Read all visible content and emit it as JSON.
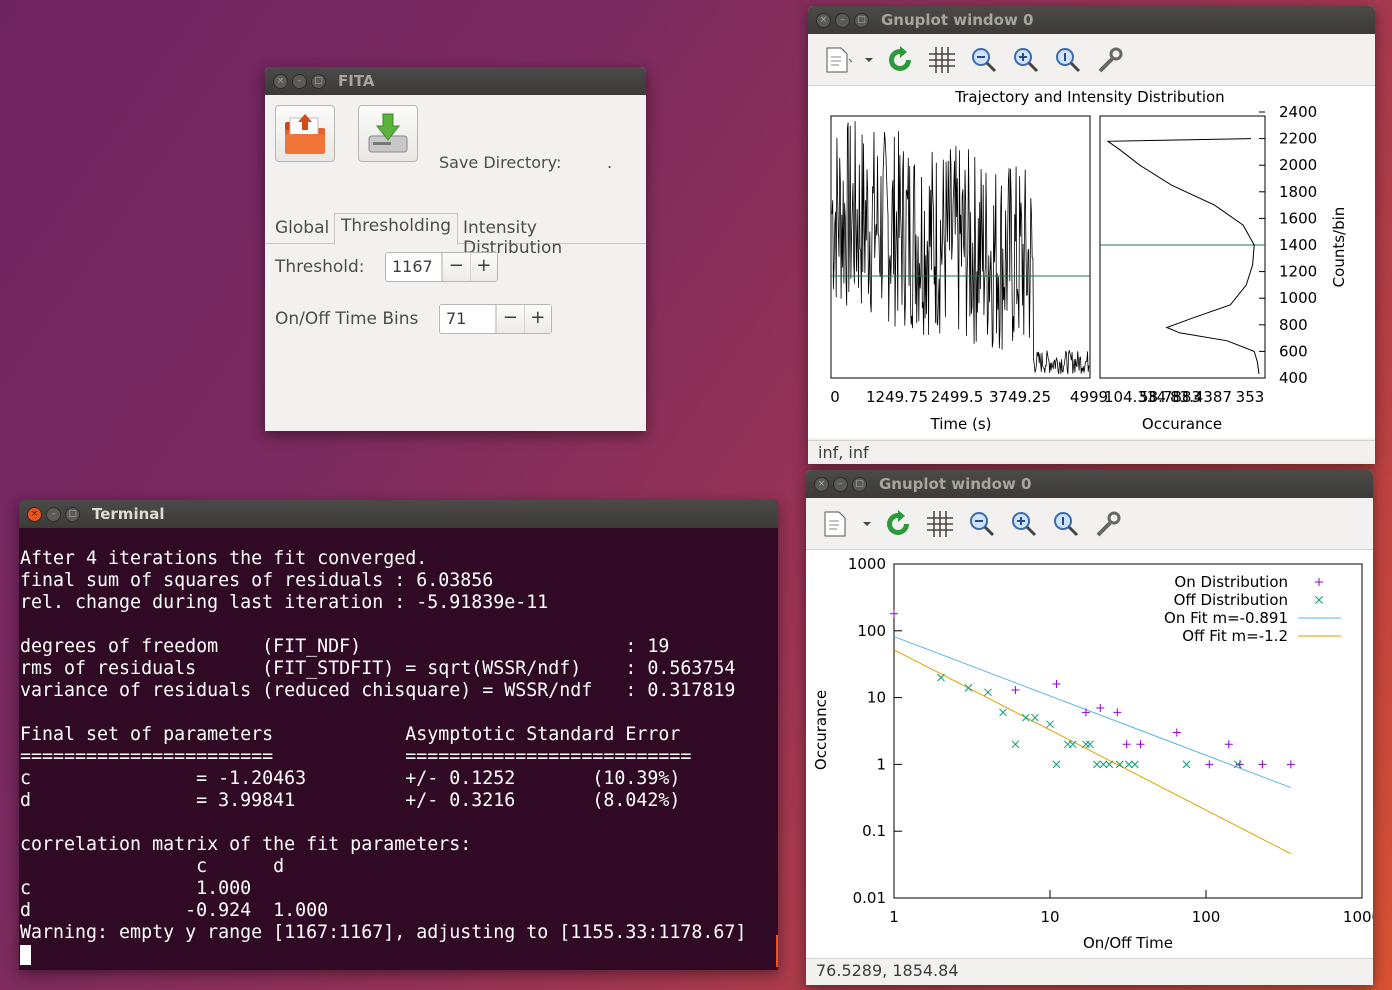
{
  "fita": {
    "title": "FITA",
    "save_directory_label": "Save Directory:",
    "save_directory_value": ".",
    "tabs": [
      "Global",
      "Thresholding",
      "Intensity Distribution"
    ],
    "active_tab": "Thresholding",
    "threshold_label": "Threshold:",
    "threshold_value": "1167",
    "onoff_label": "On/Off Time Bins",
    "onoff_value": "71",
    "minus": "−",
    "plus": "+"
  },
  "terminal": {
    "title": "Terminal",
    "lines": [
      "After 4 iterations the fit converged.",
      "final sum of squares of residuals : 6.03856",
      "rel. change during last iteration : -5.91839e-11",
      "",
      "degrees of freedom    (FIT_NDF)                        : 19",
      "rms of residuals      (FIT_STDFIT) = sqrt(WSSR/ndf)    : 0.563754",
      "variance of residuals (reduced chisquare) = WSSR/ndf   : 0.317819",
      "",
      "Final set of parameters            Asymptotic Standard Error",
      "=======================            ==========================",
      "c               = -1.20463         +/- 0.1252       (10.39%)",
      "d               = 3.99841          +/- 0.3216       (8.042%)",
      "",
      "correlation matrix of the fit parameters:",
      "                c      d",
      "c               1.000",
      "d              -0.924  1.000",
      "Warning: empty y range [1167:1167], adjusting to [1155.33:1178.67]"
    ]
  },
  "gnuplot1": {
    "title": "Gnuplot window 0",
    "status": "inf,  inf",
    "plot_title": "Trajectory and Intensity Distribution",
    "left_xlabel": "Time (s)",
    "right_xlabel": "Occurance",
    "right_ylabel": "Counts/bin",
    "left_xticks": [
      "0",
      "1249.75",
      "2499.5",
      "3749.25",
      "4999"
    ],
    "right_xticks": [
      "104.334",
      "58.7883",
      "83.4387",
      "353"
    ],
    "yticks": [
      "2400",
      "2200",
      "2000",
      "1800",
      "1600",
      "1400",
      "1200",
      "1000",
      "800",
      "600",
      "400"
    ],
    "threshold_color": "#1a7a4a"
  },
  "gnuplot2": {
    "title": "Gnuplot window 0",
    "status": "76.5289,  1854.84",
    "xlabel": "On/Off Time",
    "ylabel": "Occurance",
    "xticks": [
      "1",
      "10",
      "100",
      "1000"
    ],
    "yticks": [
      "1000",
      "100",
      "10",
      "1",
      "0.1",
      "0.01"
    ],
    "legend": [
      "On Distribution",
      "Off Distribution",
      "On Fit m=-0.891",
      "Off Fit m=-1.2"
    ],
    "colors": {
      "on": "#9400d3",
      "off": "#009e73",
      "on_fit": "#56b4e9",
      "off_fit": "#e69f00"
    }
  },
  "chart_data": {
    "type": "scatter",
    "xlabel": "On/Off Time",
    "ylabel": "Occurance",
    "xscale": "log",
    "yscale": "log",
    "xlim": [
      1,
      1000
    ],
    "ylim": [
      0.01,
      1000
    ],
    "legend_position": "top-right",
    "series": [
      {
        "name": "On Distribution",
        "x": [
          1,
          6,
          11,
          17,
          21,
          27,
          31,
          38,
          65,
          105,
          140,
          165,
          230,
          350
        ],
        "y": [
          180,
          13,
          16,
          6,
          7,
          6,
          2,
          2,
          3,
          1,
          2,
          1,
          1,
          1
        ]
      },
      {
        "name": "Off Distribution",
        "x": [
          2,
          3,
          4,
          5,
          6,
          7,
          8,
          10,
          11,
          13,
          14,
          17,
          18,
          20,
          22,
          24,
          28,
          32,
          35,
          75,
          160
        ],
        "y": [
          20,
          14,
          12,
          6,
          2,
          5,
          5,
          4,
          1,
          2,
          2,
          2,
          2,
          1,
          1,
          1,
          1,
          1,
          1,
          1,
          1
        ]
      },
      {
        "name": "On Fit m=-0.891",
        "x": [
          1,
          350
        ],
        "y": [
          82,
          0.45
        ]
      },
      {
        "name": "Off Fit m=-1.2",
        "x": [
          1,
          350
        ],
        "y": [
          52,
          0.046
        ]
      }
    ]
  }
}
